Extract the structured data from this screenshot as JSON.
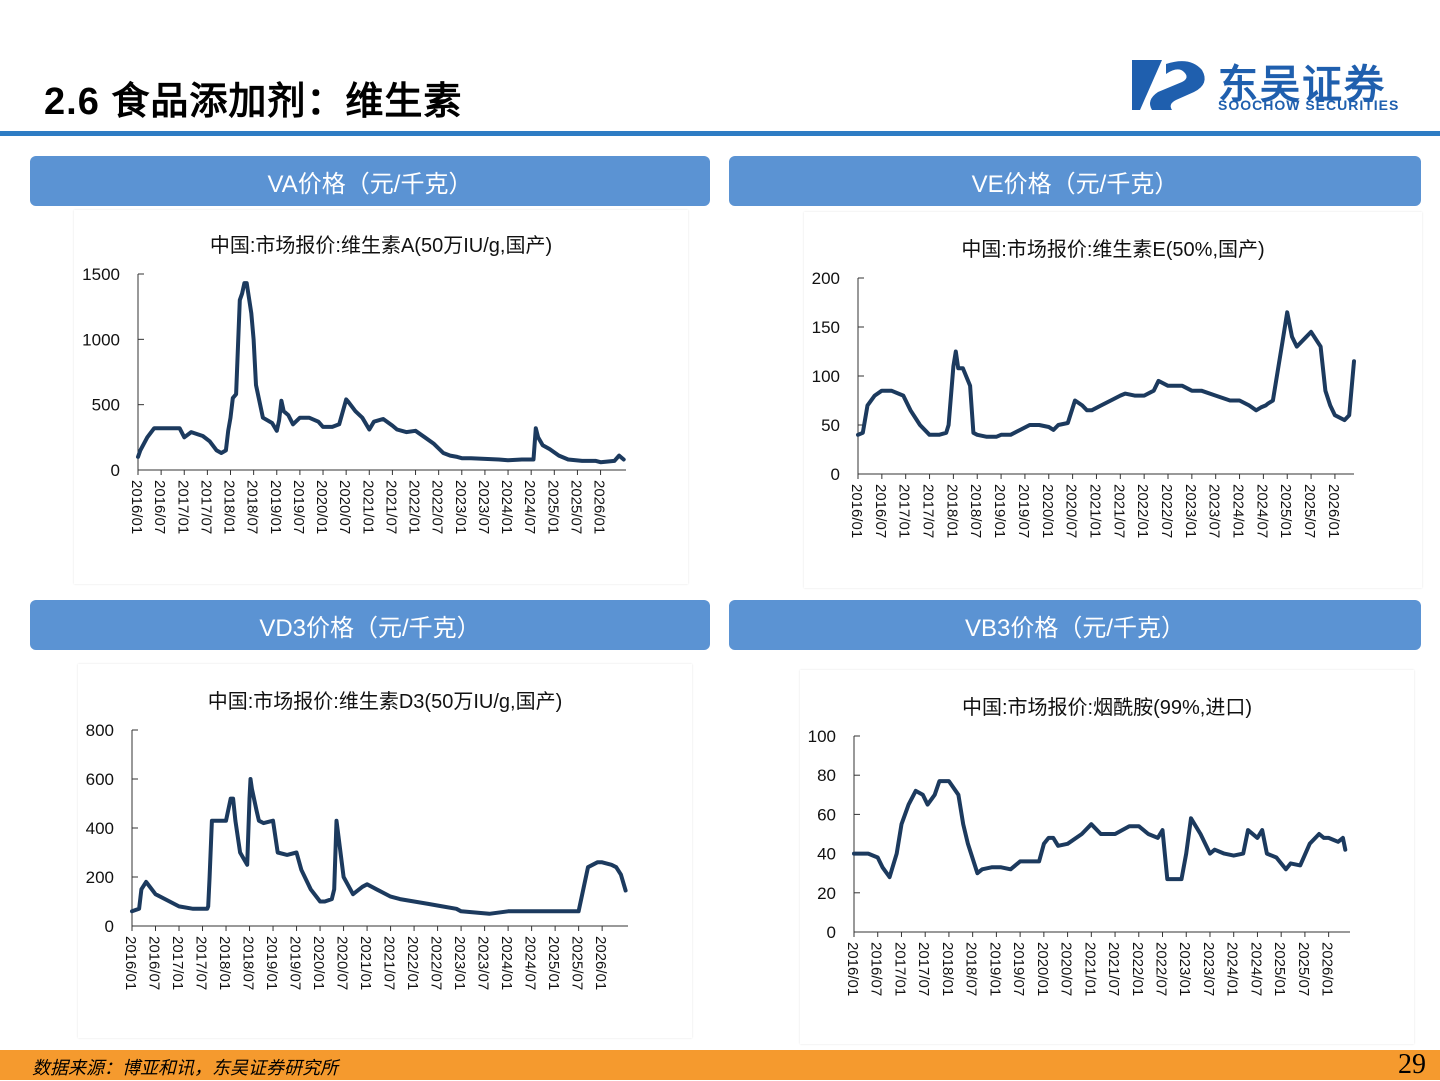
{
  "page": {
    "title": "2.6 食品添加剂：维生素",
    "source": "数据来源：博亚和讯，东吴证券研究所",
    "page_number": "29"
  },
  "logo": {
    "cn": "东吴证券",
    "en": "SOOCHOW SECURITIES"
  },
  "colors": {
    "accent": "#2e7cc4",
    "panel_header": "#5b93d3",
    "line": "#1c3a5e",
    "footer": "#f59a2e",
    "logo": "#1f5fae"
  },
  "panels": [
    {
      "header": "VA价格（元/千克）"
    },
    {
      "header": "VE价格（元/千克）"
    },
    {
      "header": "VD3价格（元/千克）"
    },
    {
      "header": "VB3价格（元/千克）"
    }
  ],
  "chart_data": [
    {
      "type": "line",
      "title": "中国:市场报价:维生素A(50万IU/g,国产)",
      "ylim": [
        0,
        1500
      ],
      "yticks": [
        "0",
        "500",
        "1000",
        "1500"
      ],
      "xticks": [
        "2016/01",
        "2016/07",
        "2017/01",
        "2017/07",
        "2018/01",
        "2018/07",
        "2019/01",
        "2019/07",
        "2020/01",
        "2020/07",
        "2021/01",
        "2021/07",
        "2022/01",
        "2022/07",
        "2023/01",
        "2023/07",
        "2024/01",
        "2024/07",
        "2025/01",
        "2025/07",
        "2026/01"
      ],
      "xlim": [
        2016.0,
        2026.55
      ],
      "series": [
        {
          "x": [
            2016.0,
            2016.05,
            2016.2,
            2016.35,
            2016.5,
            2016.9,
            2017.0,
            2017.15,
            2017.4,
            2017.55,
            2017.7,
            2017.8,
            2017.9,
            2017.95,
            2018.0,
            2018.05,
            2018.12,
            2018.2,
            2018.25,
            2018.3,
            2018.35,
            2018.45,
            2018.5,
            2018.55,
            2018.7,
            2018.9,
            2019.0,
            2019.05,
            2019.1,
            2019.15,
            2019.25,
            2019.35,
            2019.5,
            2019.7,
            2019.9,
            2020.0,
            2020.2,
            2020.35,
            2020.5,
            2020.55,
            2020.7,
            2020.85,
            2021.0,
            2021.1,
            2021.3,
            2021.5,
            2021.6,
            2021.8,
            2022.0,
            2022.2,
            2022.4,
            2022.6,
            2022.75,
            2022.9,
            2023.0,
            2023.2,
            2023.5,
            2023.8,
            2024.0,
            2024.3,
            2024.55,
            2024.6,
            2024.65,
            2024.75,
            2024.9,
            2025.1,
            2025.3,
            2025.6,
            2025.9,
            2026.0,
            2026.3,
            2026.4,
            2026.5
          ],
          "y": [
            100,
            150,
            250,
            320,
            320,
            320,
            250,
            290,
            260,
            220,
            150,
            130,
            150,
            300,
            400,
            550,
            580,
            1300,
            1350,
            1430,
            1430,
            1200,
            1000,
            650,
            400,
            360,
            300,
            380,
            530,
            450,
            420,
            350,
            400,
            400,
            370,
            330,
            330,
            350,
            540,
            520,
            450,
            400,
            310,
            370,
            390,
            340,
            310,
            290,
            300,
            250,
            200,
            130,
            110,
            100,
            90,
            90,
            85,
            80,
            75,
            80,
            80,
            320,
            250,
            190,
            160,
            110,
            80,
            70,
            70,
            60,
            70,
            110,
            80
          ]
        }
      ]
    },
    {
      "type": "line",
      "title": "中国:市场报价:维生素E(50%,国产)",
      "ylim": [
        0,
        200
      ],
      "yticks": [
        "0",
        "50",
        "100",
        "150",
        "200"
      ],
      "xticks": [
        "2016/01",
        "2016/07",
        "2017/01",
        "2017/07",
        "2018/01",
        "2018/07",
        "2019/01",
        "2019/07",
        "2020/01",
        "2020/07",
        "2021/01",
        "2021/07",
        "2022/01",
        "2022/07",
        "2023/01",
        "2023/07",
        "2024/01",
        "2024/07",
        "2025/01",
        "2025/07",
        "2026/01"
      ],
      "xlim": [
        2016.0,
        2026.4
      ],
      "series": [
        {
          "x": [
            2016.0,
            2016.1,
            2016.2,
            2016.35,
            2016.5,
            2016.7,
            2016.95,
            2017.1,
            2017.3,
            2017.5,
            2017.7,
            2017.85,
            2017.9,
            2018.0,
            2018.05,
            2018.1,
            2018.2,
            2018.35,
            2018.42,
            2018.5,
            2018.7,
            2018.9,
            2019.0,
            2019.2,
            2019.4,
            2019.6,
            2019.8,
            2020.0,
            2020.1,
            2020.2,
            2020.4,
            2020.55,
            2020.7,
            2020.8,
            2020.9,
            2021.1,
            2021.3,
            2021.5,
            2021.6,
            2021.8,
            2022.0,
            2022.2,
            2022.3,
            2022.5,
            2022.8,
            2023.0,
            2023.2,
            2023.5,
            2023.8,
            2024.0,
            2024.2,
            2024.35,
            2024.45,
            2024.55,
            2024.6,
            2024.7,
            2024.9,
            2025.0,
            2025.1,
            2025.2,
            2025.4,
            2025.5,
            2025.7,
            2025.8,
            2025.9,
            2026.0,
            2026.2,
            2026.3,
            2026.4
          ],
          "y": [
            40,
            42,
            70,
            80,
            85,
            85,
            80,
            65,
            50,
            40,
            40,
            42,
            50,
            110,
            125,
            108,
            108,
            90,
            42,
            40,
            38,
            38,
            40,
            40,
            45,
            50,
            50,
            48,
            45,
            50,
            52,
            75,
            70,
            65,
            65,
            70,
            75,
            80,
            82,
            80,
            80,
            85,
            95,
            90,
            90,
            85,
            85,
            80,
            75,
            75,
            70,
            65,
            68,
            70,
            72,
            75,
            135,
            165,
            140,
            130,
            140,
            145,
            130,
            85,
            70,
            60,
            55,
            60,
            115
          ]
        }
      ]
    },
    {
      "type": "line",
      "title": "中国:市场报价:维生素D3(50万IU/g,国产)",
      "ylim": [
        0,
        800
      ],
      "yticks": [
        "0",
        "200",
        "400",
        "600",
        "800"
      ],
      "xticks": [
        "2016/01",
        "2016/07",
        "2017/01",
        "2017/07",
        "2018/01",
        "2018/07",
        "2019/01",
        "2019/07",
        "2020/01",
        "2020/07",
        "2021/01",
        "2021/07",
        "2022/01",
        "2022/07",
        "2023/01",
        "2023/07",
        "2024/01",
        "2024/07",
        "2025/01",
        "2025/07",
        "2026/01"
      ],
      "xlim": [
        2016.0,
        2026.55
      ],
      "series": [
        {
          "x": [
            2016.0,
            2016.15,
            2016.2,
            2016.3,
            2016.5,
            2016.8,
            2017.0,
            2017.3,
            2017.6,
            2017.62,
            2017.65,
            2017.7,
            2017.85,
            2018.0,
            2018.1,
            2018.15,
            2018.2,
            2018.3,
            2018.45,
            2018.5,
            2018.52,
            2018.55,
            2018.65,
            2018.7,
            2018.8,
            2019.0,
            2019.1,
            2019.3,
            2019.5,
            2019.6,
            2019.8,
            2020.0,
            2020.1,
            2020.25,
            2020.3,
            2020.35,
            2020.5,
            2020.7,
            2020.9,
            2021.0,
            2021.2,
            2021.5,
            2021.7,
            2022.0,
            2022.3,
            2022.6,
            2022.9,
            2023.0,
            2023.3,
            2023.6,
            2024.0,
            2024.3,
            2024.35,
            2024.4,
            2024.45,
            2024.55,
            2024.7,
            2024.9,
            2025.1,
            2025.3,
            2025.5,
            2025.7,
            2025.9,
            2026.0,
            2026.2,
            2026.3,
            2026.4,
            2026.5
          ],
          "y": [
            60,
            70,
            150,
            180,
            130,
            100,
            80,
            70,
            70,
            80,
            200,
            430,
            430,
            430,
            520,
            520,
            430,
            300,
            250,
            520,
            600,
            560,
            470,
            430,
            420,
            430,
            300,
            290,
            300,
            230,
            150,
            100,
            100,
            110,
            150,
            430,
            200,
            130,
            160,
            170,
            150,
            120,
            110,
            100,
            90,
            80,
            70,
            60,
            55,
            50,
            60,
            60,
            60,
            60,
            60,
            60,
            60,
            60,
            60,
            60,
            60,
            240,
            260,
            260,
            250,
            240,
            210,
            145
          ]
        }
      ]
    },
    {
      "type": "line",
      "title": "中国:市场报价:烟酰胺(99%,进口)",
      "ylim": [
        0,
        100
      ],
      "yticks": [
        "0",
        "20",
        "40",
        "60",
        "80",
        "100"
      ],
      "xticks": [
        "2016/01",
        "2016/07",
        "2017/01",
        "2017/07",
        "2018/01",
        "2018/07",
        "2019/01",
        "2019/07",
        "2020/01",
        "2020/07",
        "2021/01",
        "2021/07",
        "2022/01",
        "2022/07",
        "2023/01",
        "2023/07",
        "2024/01",
        "2024/07",
        "2025/01",
        "2025/07",
        "2026/01"
      ],
      "xlim": [
        2016.0,
        2026.45
      ],
      "series": [
        {
          "x": [
            2016.0,
            2016.3,
            2016.5,
            2016.6,
            2016.75,
            2016.9,
            2017.0,
            2017.15,
            2017.3,
            2017.45,
            2017.55,
            2017.7,
            2017.8,
            2018.0,
            2018.2,
            2018.3,
            2018.4,
            2018.6,
            2018.7,
            2018.9,
            2019.1,
            2019.3,
            2019.5,
            2019.7,
            2019.9,
            2020.0,
            2020.1,
            2020.2,
            2020.3,
            2020.5,
            2020.8,
            2021.0,
            2021.2,
            2021.5,
            2021.8,
            2022.0,
            2022.2,
            2022.4,
            2022.5,
            2022.6,
            2022.9,
            2023.0,
            2023.1,
            2023.3,
            2023.5,
            2023.6,
            2023.8,
            2024.0,
            2024.2,
            2024.3,
            2024.5,
            2024.6,
            2024.7,
            2024.9,
            2025.1,
            2025.2,
            2025.4,
            2025.6,
            2025.8,
            2025.9,
            2026.0,
            2026.1,
            2026.2,
            2026.3,
            2026.35
          ],
          "y": [
            40,
            40,
            38,
            33,
            28,
            40,
            55,
            65,
            72,
            70,
            65,
            70,
            77,
            77,
            70,
            55,
            45,
            30,
            32,
            33,
            33,
            32,
            36,
            36,
            36,
            45,
            48,
            48,
            44,
            45,
            50,
            55,
            50,
            50,
            54,
            54,
            50,
            48,
            52,
            27,
            27,
            40,
            58,
            50,
            40,
            42,
            40,
            39,
            40,
            52,
            48,
            52,
            40,
            38,
            32,
            35,
            34,
            45,
            50,
            48,
            48,
            47,
            46,
            48,
            42
          ]
        }
      ]
    }
  ]
}
